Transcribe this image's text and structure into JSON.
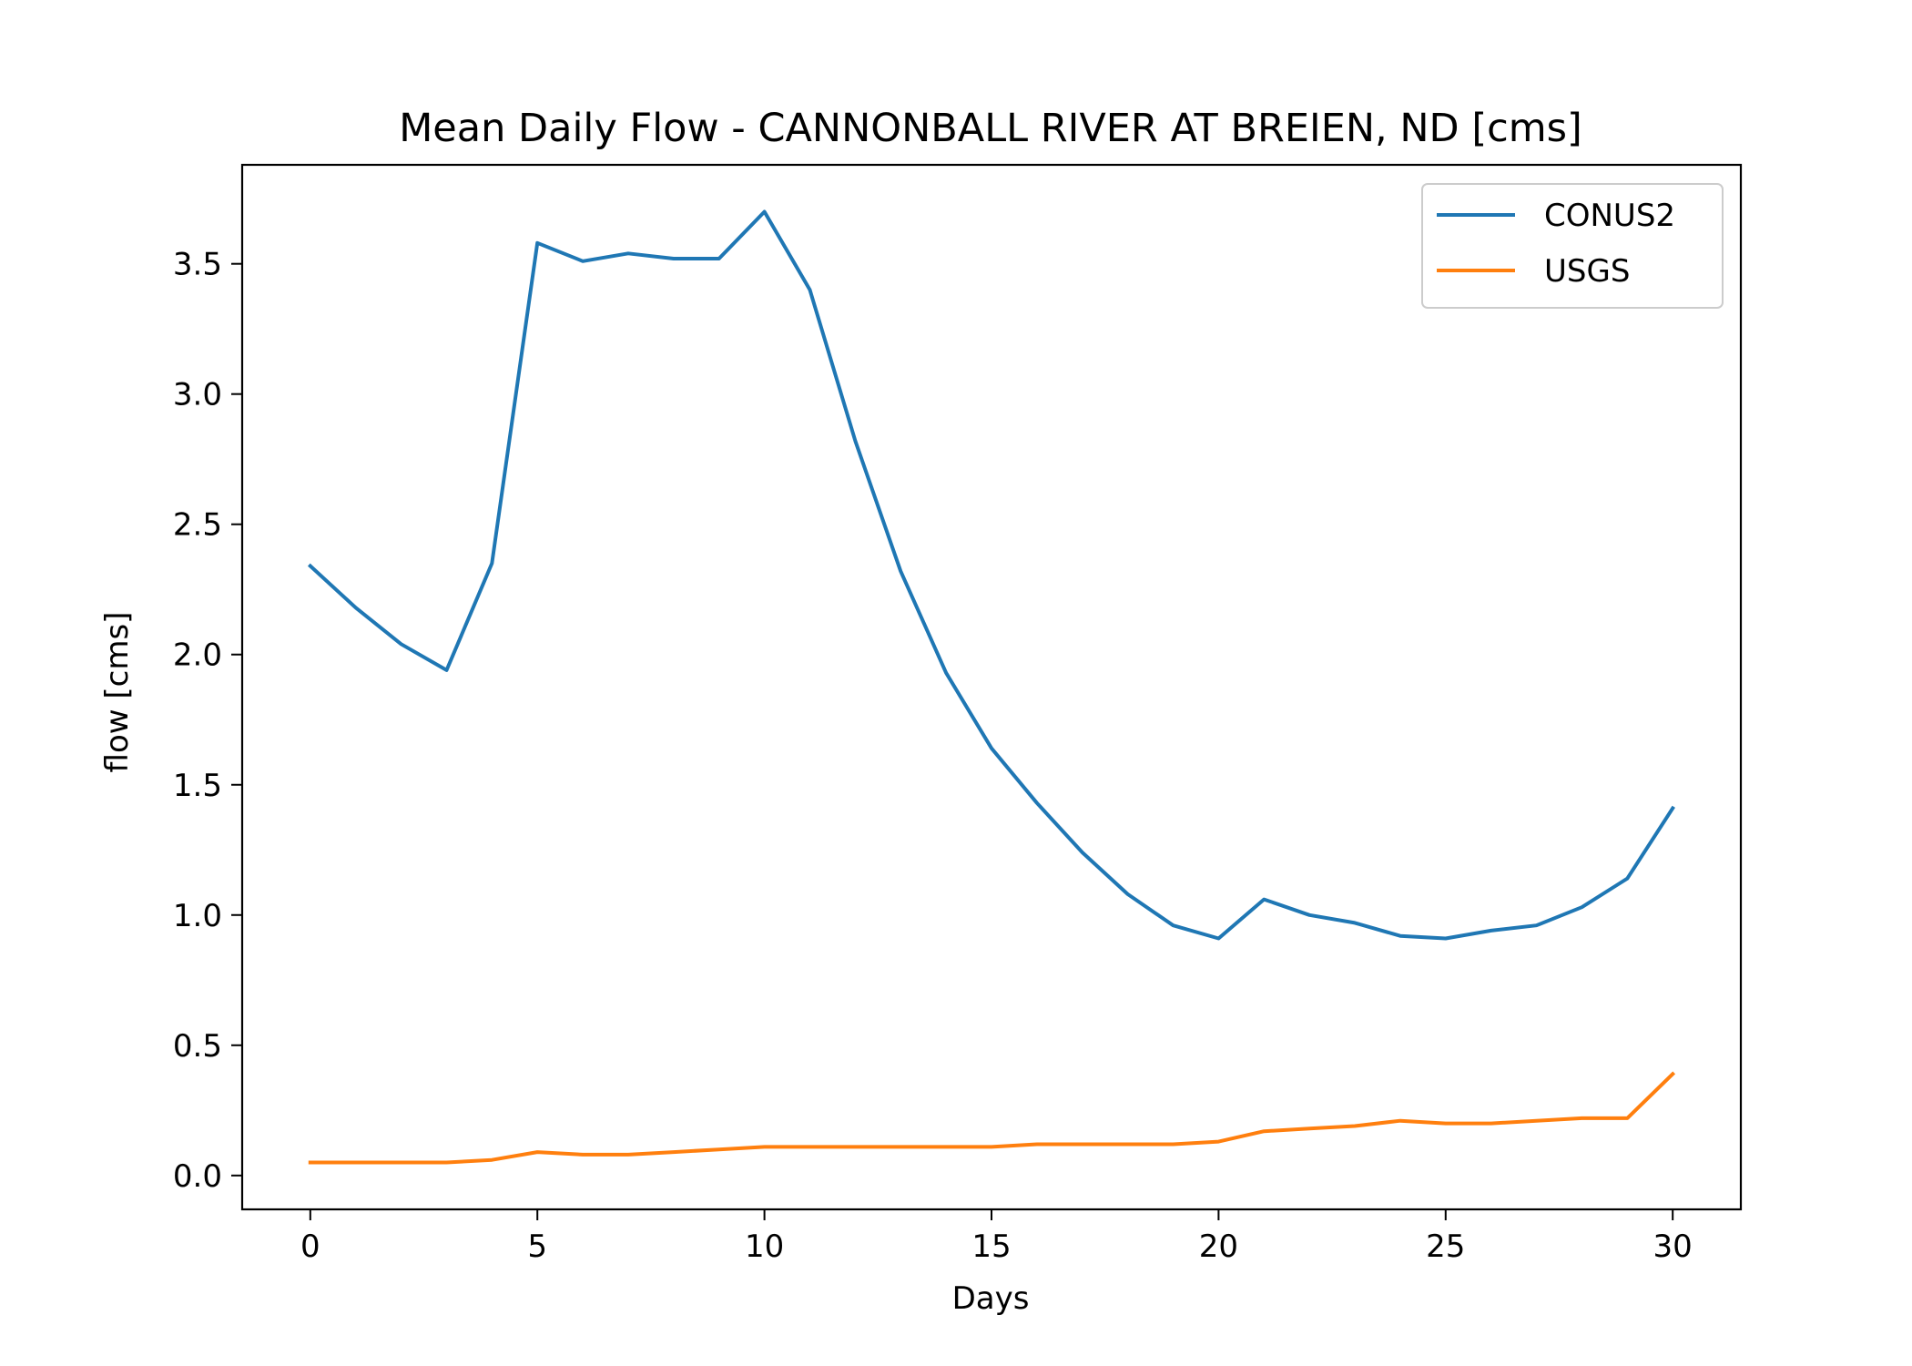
{
  "chart_data": {
    "type": "line",
    "title": "Mean Daily Flow - CANNONBALL RIVER AT BREIEN, ND [cms]",
    "xlabel": "Days",
    "ylabel": "flow [cms]",
    "xlim": [
      -1.5,
      31.5
    ],
    "ylim": [
      -0.13,
      3.88
    ],
    "xticks": [
      0,
      5,
      10,
      15,
      20,
      25,
      30
    ],
    "xtick_labels": [
      "0",
      "5",
      "10",
      "15",
      "20",
      "25",
      "30"
    ],
    "yticks": [
      0.0,
      0.5,
      1.0,
      1.5,
      2.0,
      2.5,
      3.0,
      3.5
    ],
    "ytick_labels": [
      "0.0",
      "0.5",
      "1.0",
      "1.5",
      "2.0",
      "2.5",
      "3.0",
      "3.5"
    ],
    "grid": false,
    "legend_position": "top-right",
    "x": [
      0,
      1,
      2,
      3,
      4,
      5,
      6,
      7,
      8,
      9,
      10,
      11,
      12,
      13,
      14,
      15,
      16,
      17,
      18,
      19,
      20,
      21,
      22,
      23,
      24,
      25,
      26,
      27,
      28,
      29,
      30
    ],
    "series": [
      {
        "name": "CONUS2",
        "color": "#1f77b4",
        "values": [
          2.34,
          2.18,
          2.04,
          1.94,
          2.35,
          3.58,
          3.51,
          3.54,
          3.52,
          3.52,
          3.7,
          3.4,
          2.82,
          2.32,
          1.93,
          1.64,
          1.43,
          1.24,
          1.08,
          0.96,
          0.91,
          1.06,
          1.0,
          0.97,
          0.92,
          0.91,
          0.94,
          0.96,
          1.03,
          1.14,
          1.41
        ]
      },
      {
        "name": "USGS",
        "color": "#ff7f0e",
        "values": [
          0.05,
          0.05,
          0.05,
          0.05,
          0.06,
          0.09,
          0.08,
          0.08,
          0.09,
          0.1,
          0.11,
          0.11,
          0.11,
          0.11,
          0.11,
          0.11,
          0.12,
          0.12,
          0.12,
          0.12,
          0.13,
          0.17,
          0.18,
          0.19,
          0.21,
          0.2,
          0.2,
          0.21,
          0.22,
          0.22,
          0.39
        ]
      }
    ]
  }
}
